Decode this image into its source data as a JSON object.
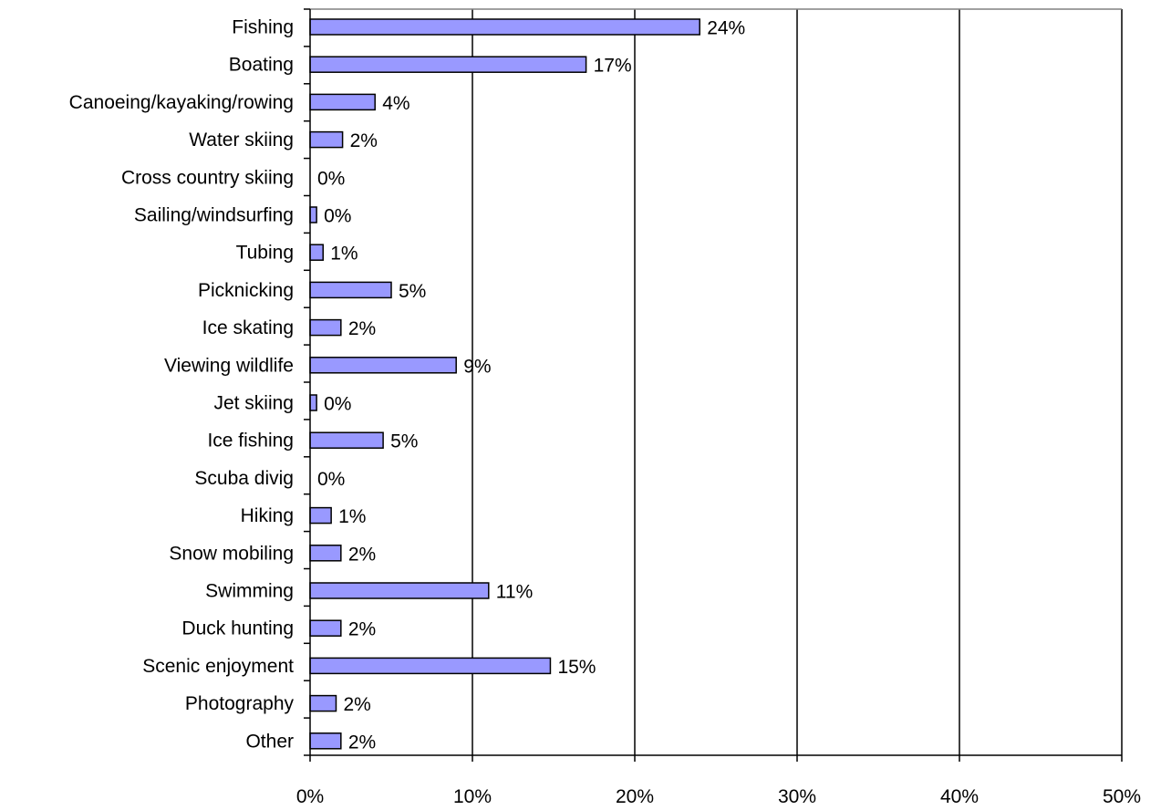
{
  "chart_data": {
    "type": "bar",
    "orientation": "horizontal",
    "title": "",
    "xlabel": "",
    "ylabel": "",
    "xlim": [
      0,
      50
    ],
    "x_ticks": [
      0,
      10,
      20,
      30,
      40,
      50
    ],
    "x_tick_labels": [
      "0%",
      "10%",
      "20%",
      "30%",
      "40%",
      "50%"
    ],
    "grid": "vertical",
    "categories": [
      "Fishing",
      "Boating",
      "Canoeing/kayaking/rowing",
      "Water skiing",
      "Cross country skiing",
      "Sailing/windsurfing",
      "Tubing",
      "Picknicking",
      "Ice skating",
      "Viewing wildlife",
      "Jet skiing",
      "Ice fishing",
      "Scuba divig",
      "Hiking",
      "Snow mobiling",
      "Swimming",
      "Duck hunting",
      "Scenic enjoyment",
      "Photography",
      "Other"
    ],
    "values": [
      24,
      17,
      4,
      2,
      0,
      0.4,
      0.8,
      5,
      1.9,
      9,
      0.4,
      4.5,
      0,
      1.3,
      1.9,
      11,
      1.9,
      14.8,
      1.6,
      1.9
    ],
    "data_labels": [
      "24%",
      "17%",
      "4%",
      "2%",
      "0%",
      "0%",
      "1%",
      "5%",
      "2%",
      "9%",
      "0%",
      "5%",
      "0%",
      "1%",
      "2%",
      "11%",
      "2%",
      "15%",
      "2%",
      "2%"
    ],
    "colors": {
      "bar_fill": "#9999ff",
      "bar_stroke": "#000000",
      "grid": "#000000",
      "text": "#000000"
    }
  }
}
